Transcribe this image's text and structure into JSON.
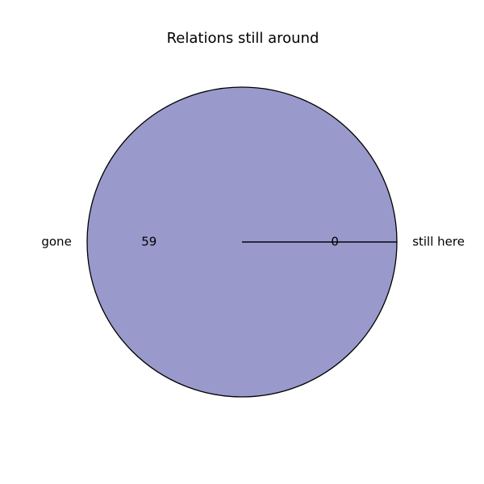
{
  "chart_data": {
    "type": "pie",
    "title": "Relations still around",
    "categories": [
      "gone",
      "still here"
    ],
    "values": [
      59,
      0
    ],
    "value_labels": [
      "59",
      "0"
    ],
    "colors": [
      "#9999cc",
      "#9999cc"
    ],
    "edge_color": "#000000",
    "legend": "none",
    "grid": false
  }
}
